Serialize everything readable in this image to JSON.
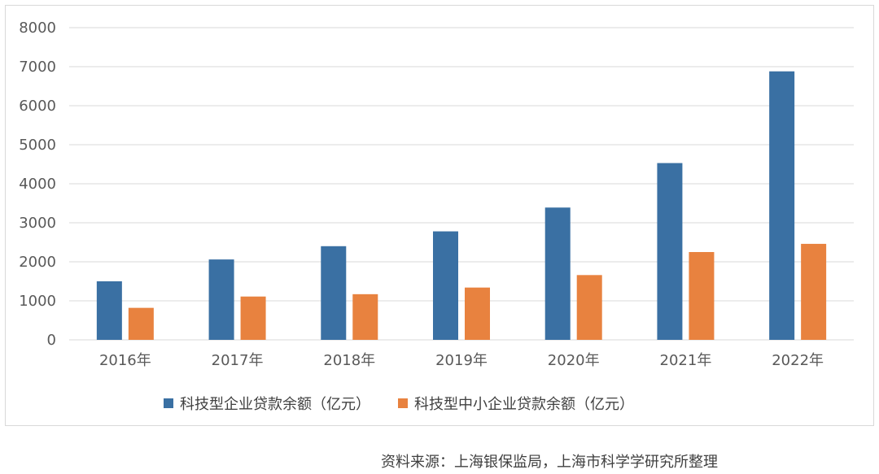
{
  "chart_data": {
    "type": "bar",
    "categories": [
      "2016年",
      "2017年",
      "2018年",
      "2019年",
      "2020年",
      "2021年",
      "2022年"
    ],
    "series": [
      {
        "name": "科技型企业贷款余额（亿元）",
        "color": "#3a70a3",
        "values": [
          1500,
          2060,
          2400,
          2780,
          3390,
          4530,
          6880
        ]
      },
      {
        "name": "科技型中小企业贷款余额（亿元）",
        "color": "#e8823f",
        "values": [
          820,
          1110,
          1170,
          1340,
          1660,
          2250,
          2460
        ]
      }
    ],
    "ylim": [
      0,
      8000
    ],
    "yticks": [
      0,
      1000,
      2000,
      3000,
      4000,
      5000,
      6000,
      7000,
      8000
    ],
    "grid": true,
    "legend_position": "bottom"
  },
  "source_note": "资料来源：上海银保监局，上海市科学学研究所整理"
}
